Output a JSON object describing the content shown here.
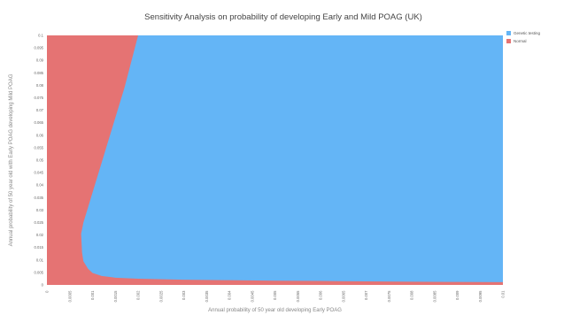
{
  "chart_data": {
    "type": "area",
    "title": "Sensitivity Analysis on probability of developing Early and Mild POAG (UK)",
    "xlabel": "Annual probability of 50 year old developing Early POAG",
    "ylabel": "Annual probability of 50 year old with Early POAG developing Mild POAG",
    "xlim": [
      0,
      0.01
    ],
    "ylim": [
      0,
      0.1
    ],
    "x_ticks": [
      "0",
      "0.0005",
      "0.001",
      "0.0015",
      "0.002",
      "0.0025",
      "0.003",
      "0.0035",
      "0.004",
      "0.0045",
      "0.005",
      "0.0055",
      "0.006",
      "0.0065",
      "0.007",
      "0.0075",
      "0.008",
      "0.0085",
      "0.009",
      "0.0095",
      "0.01"
    ],
    "y_ticks": [
      "0",
      "0.005",
      "0.01",
      "0.015",
      "0.02",
      "0.025",
      "0.03",
      "0.035",
      "0.04",
      "0.045",
      "0.05",
      "0.055",
      "0.06",
      "0.065",
      "0.07",
      "0.075",
      "0.08",
      "0.085",
      "0.09",
      "0.095",
      "0.1"
    ],
    "series": [
      {
        "name": "Genetic testing",
        "color": "#64B5F6"
      },
      {
        "name": "Normal",
        "color": "#E57373"
      }
    ],
    "boundary": {
      "upper": [
        [
          0.00075,
          0.0205
        ],
        [
          0.0008,
          0.025
        ],
        [
          0.0009,
          0.031
        ],
        [
          0.001,
          0.037
        ],
        [
          0.0011,
          0.043
        ],
        [
          0.0012,
          0.049
        ],
        [
          0.0013,
          0.055
        ],
        [
          0.0014,
          0.061
        ],
        [
          0.0015,
          0.067
        ],
        [
          0.0016,
          0.073
        ],
        [
          0.0017,
          0.079
        ],
        [
          0.0018,
          0.086
        ],
        [
          0.0019,
          0.093
        ],
        [
          0.002,
          0.1
        ]
      ],
      "lower": [
        [
          0.00075,
          0.0205
        ],
        [
          0.00077,
          0.013
        ],
        [
          0.0008,
          0.0095
        ],
        [
          0.0009,
          0.0065
        ],
        [
          0.001,
          0.0048
        ],
        [
          0.0012,
          0.0036
        ],
        [
          0.0015,
          0.0029
        ],
        [
          0.002,
          0.0025
        ],
        [
          0.003,
          0.0021
        ],
        [
          0.004,
          0.0019
        ],
        [
          0.005,
          0.0017
        ],
        [
          0.006,
          0.0016
        ],
        [
          0.007,
          0.0014
        ],
        [
          0.008,
          0.0013
        ],
        [
          0.009,
          0.0012
        ],
        [
          0.01,
          0.0011
        ]
      ]
    },
    "legend_position": "top-right",
    "grid": false
  }
}
